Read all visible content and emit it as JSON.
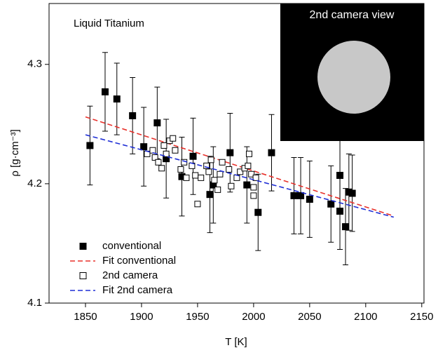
{
  "chart_data": {
    "type": "scatter",
    "annotation": "Liquid Titanium",
    "inset_label": "2nd camera view",
    "xlabel": "T [K]",
    "ylabel": "ρ [g·cm⁻³]",
    "xlim": [
      1817.5,
      2152
    ],
    "ylim": [
      4.1,
      4.351
    ],
    "xticks": [
      1850,
      1900,
      1950,
      2000,
      2050,
      2100,
      2150
    ],
    "yticks": [
      4.1,
      4.2,
      4.3
    ],
    "legend": "lower left",
    "series": [
      {
        "name": "conventional",
        "color": "#000000",
        "kind": "marker",
        "filled": true,
        "x": [
          1854,
          1867.5,
          1878,
          1892,
          1902,
          1914,
          1922,
          1936,
          1946,
          1961,
          1964,
          1979,
          1994,
          2004,
          2016,
          2036,
          2042,
          2050,
          2069,
          2077,
          2077,
          2082,
          2085,
          2088
        ],
        "values": [
          4.232,
          4.277,
          4.271,
          4.257,
          4.231,
          4.251,
          4.221,
          4.206,
          4.223,
          4.191,
          4.199,
          4.226,
          4.199,
          4.176,
          4.226,
          4.19,
          4.19,
          4.187,
          4.183,
          4.207,
          4.177,
          4.164,
          4.193,
          4.192
        ],
        "errors": [
          0.033,
          0.033,
          0.03,
          0.032,
          0.033,
          0.03,
          0.033,
          0.033,
          0.032,
          0.032,
          0.032,
          0.033,
          0.032,
          0.032,
          0.032,
          0.032,
          0.032,
          0.032,
          0.032,
          0.032,
          0.032,
          0.032,
          0.032,
          0.032
        ]
      },
      {
        "name": "Fit conventional",
        "color": "#e8302a",
        "kind": "line",
        "dashed": true,
        "x": [
          1850,
          2125
        ],
        "values": [
          4.256,
          4.173
        ]
      },
      {
        "name": "2nd camera",
        "color": "#000000",
        "kind": "marker",
        "filled": false,
        "x": [
          1905,
          1910,
          1912,
          1915,
          1918,
          1920,
          1922,
          1925,
          1928,
          1930,
          1935,
          1938,
          1940,
          1945,
          1948,
          1950,
          1953,
          1958,
          1960,
          1962,
          1965,
          1968,
          1970,
          1972,
          1978,
          1980,
          1985,
          1988,
          1992,
          1995,
          1996,
          1998,
          2000,
          2000,
          2002
        ],
        "values": [
          4.225,
          4.228,
          4.222,
          4.218,
          4.213,
          4.232,
          4.225,
          4.236,
          4.238,
          4.228,
          4.212,
          4.218,
          4.205,
          4.215,
          4.207,
          4.183,
          4.205,
          4.215,
          4.21,
          4.22,
          4.203,
          4.195,
          4.208,
          4.218,
          4.212,
          4.198,
          4.205,
          4.21,
          4.213,
          4.215,
          4.225,
          4.208,
          4.19,
          4.197,
          4.205
        ]
      },
      {
        "name": "Fit 2nd camera",
        "color": "#1f2fd6",
        "kind": "line",
        "dashed": true,
        "x": [
          1850,
          2125
        ],
        "values": [
          4.241,
          4.172
        ]
      }
    ]
  }
}
